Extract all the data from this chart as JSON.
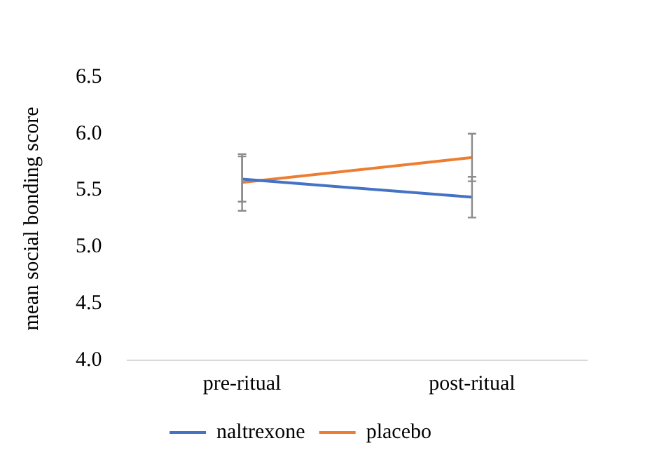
{
  "chart_data": {
    "type": "line",
    "ylabel": "mean social bonding score",
    "categories": [
      "pre-ritual",
      "post-ritual"
    ],
    "series": [
      {
        "name": "naltrexone",
        "color": "#4472c4",
        "values": [
          5.6,
          5.44
        ],
        "errors": [
          0.2,
          0.18
        ]
      },
      {
        "name": "placebo",
        "color": "#ed7d31",
        "values": [
          5.57,
          5.79
        ],
        "errors": [
          0.25,
          0.21
        ]
      }
    ],
    "ylim": [
      4.0,
      6.5
    ],
    "yticks": [
      {
        "value": 4.0,
        "label": "4.0"
      },
      {
        "value": 4.5,
        "label": "4.5"
      },
      {
        "value": 5.0,
        "label": "5.0"
      },
      {
        "value": 5.5,
        "label": "5.5"
      },
      {
        "value": 6.0,
        "label": "6.0"
      },
      {
        "value": 6.5,
        "label": "6.5"
      }
    ],
    "grid": false,
    "legend": "bottom",
    "marker": "none",
    "line_style": "solid"
  }
}
